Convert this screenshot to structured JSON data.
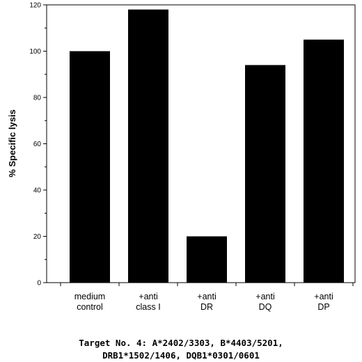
{
  "chart_data": {
    "type": "bar",
    "categories": [
      [
        "medium",
        "control"
      ],
      [
        "+anti",
        "class I"
      ],
      [
        "+anti",
        "DR"
      ],
      [
        "+anti",
        "DQ"
      ],
      [
        "+anti",
        "DP"
      ]
    ],
    "values": [
      100,
      118,
      20,
      94,
      105
    ],
    "ylabel": "% Specific lysis",
    "ylim": [
      0,
      120
    ],
    "yticks": [
      0,
      20,
      40,
      60,
      80,
      100,
      120
    ],
    "bar_color": "#000000",
    "grid": false
  },
  "caption": {
    "line1": "Target No. 4: A*2402/3303, B*4403/5201,",
    "line2": "DRB1*1502/1406, DQB1*0301/0601"
  }
}
